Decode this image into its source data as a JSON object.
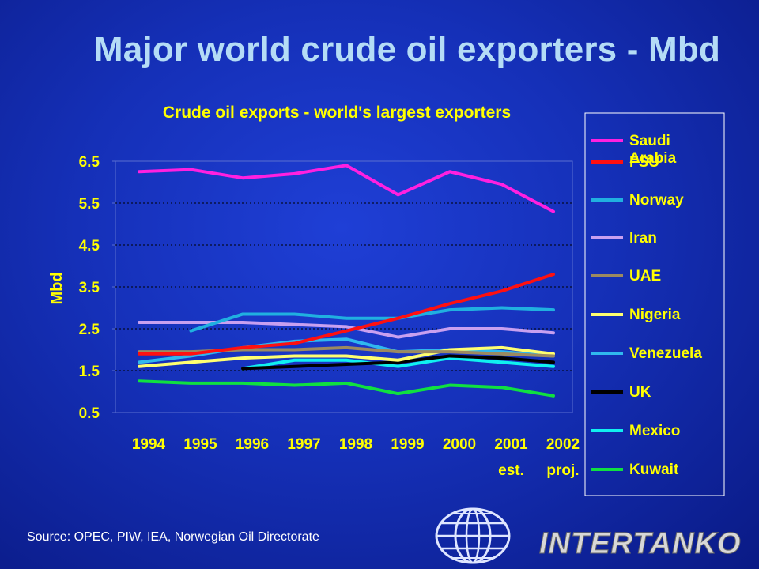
{
  "slide_title": "Major world crude oil exporters - Mbd",
  "source": "Source: OPEC, PIW, IEA, Norwegian Oil Directorate",
  "logo_text": "INTERTANKO",
  "chart_data": {
    "type": "line",
    "title": "Crude oil exports - world's largest exporters",
    "ylabel": "Mbd",
    "xlabel": "",
    "ylim": [
      0.5,
      6.5
    ],
    "yticks": [
      "6.5",
      "5.5",
      "4.5",
      "3.5",
      "2.5",
      "1.5",
      "0.5"
    ],
    "ytick_values": [
      6.5,
      5.5,
      4.5,
      3.5,
      2.5,
      1.5,
      0.5
    ],
    "categories": [
      "1994",
      "1995",
      "1996",
      "1997",
      "1998",
      "1999",
      "2000",
      "2001",
      "2002"
    ],
    "category_sublabels": [
      "",
      "",
      "",
      "",
      "",
      "",
      "",
      "est.",
      "proj."
    ],
    "grid": "horizontal-dotted",
    "legend_position": "right",
    "series": [
      {
        "name": "Saudi Arabia",
        "color": "#ff20e0",
        "values": [
          6.25,
          6.3,
          6.1,
          6.2,
          6.4,
          5.7,
          6.25,
          5.95,
          5.3
        ]
      },
      {
        "name": "FSU",
        "color": "#ff1010",
        "values": [
          1.9,
          1.9,
          2.05,
          2.15,
          2.45,
          2.75,
          3.1,
          3.4,
          3.8
        ]
      },
      {
        "name": "Norway",
        "color": "#20b0e0",
        "values": [
          null,
          2.45,
          2.85,
          2.85,
          2.75,
          2.75,
          2.95,
          3.0,
          2.95
        ]
      },
      {
        "name": "Iran",
        "color": "#c8a0f0",
        "values": [
          2.65,
          2.65,
          2.65,
          2.6,
          2.55,
          2.3,
          2.5,
          2.5,
          2.4
        ]
      },
      {
        "name": "UAE",
        "color": "#9c8a60",
        "values": [
          1.95,
          1.95,
          2.0,
          2.0,
          2.05,
          1.95,
          1.95,
          1.9,
          1.85
        ]
      },
      {
        "name": "Nigeria",
        "color": "#ffff70",
        "values": [
          1.6,
          1.7,
          1.8,
          1.85,
          1.85,
          1.75,
          2.0,
          2.05,
          1.9
        ]
      },
      {
        "name": "Venezuela",
        "color": "#30b8ee",
        "values": [
          1.7,
          1.85,
          2.05,
          2.2,
          2.25,
          1.95,
          2.0,
          1.95,
          1.85
        ]
      },
      {
        "name": "UK",
        "color": "#000000",
        "values": [
          null,
          null,
          1.55,
          1.6,
          1.65,
          1.7,
          1.85,
          1.8,
          1.7
        ]
      },
      {
        "name": "Mexico",
        "color": "#10f0f0",
        "values": [
          null,
          null,
          1.55,
          1.75,
          1.75,
          1.6,
          1.8,
          1.7,
          1.6
        ]
      },
      {
        "name": "Kuwait",
        "color": "#10e040",
        "values": [
          1.25,
          1.2,
          1.2,
          1.15,
          1.2,
          0.95,
          1.15,
          1.1,
          0.9
        ]
      }
    ]
  }
}
